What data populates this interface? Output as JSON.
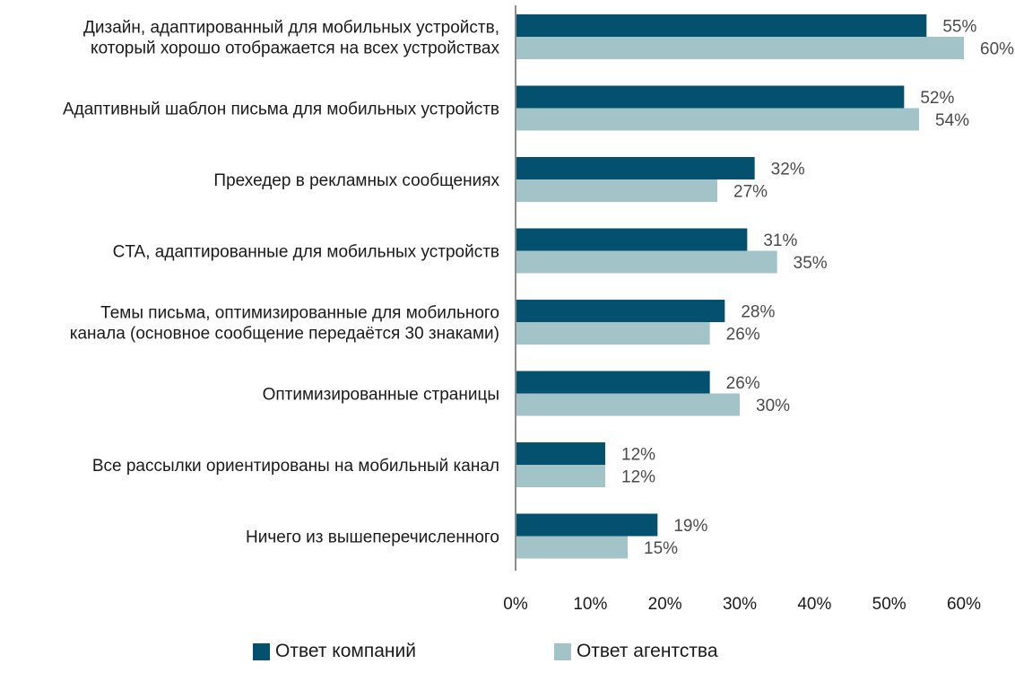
{
  "chart_data": {
    "type": "bar",
    "orientation": "horizontal",
    "categories": [
      [
        "Дизайн, адаптированный для мобильных устройств,",
        "который хорошо отображается на всех устройствах"
      ],
      [
        "Адаптивный шаблон письма для мобильных устройств"
      ],
      [
        "Прехедер в рекламных сообщениях"
      ],
      [
        "CTA, адаптированные для мобильных устройств"
      ],
      [
        "Темы письма, оптимизированные для мобильного",
        "канала (основное сообщение передаётся 30 знаками)"
      ],
      [
        "Оптимизированные страницы"
      ],
      [
        "Все рассылки ориентированы на мобильный канал"
      ],
      [
        "Ничего из вышеперечисленного"
      ]
    ],
    "series": [
      {
        "name": "Ответ компаний",
        "color": "#03506f",
        "values": [
          55,
          52,
          32,
          31,
          28,
          26,
          12,
          19
        ]
      },
      {
        "name": "Ответ агентства",
        "color": "#a2c4c9",
        "values": [
          60,
          54,
          27,
          35,
          26,
          30,
          12,
          15
        ]
      }
    ],
    "value_suffix": "%",
    "xlim": [
      0,
      60
    ],
    "xticks": [
      0,
      10,
      20,
      30,
      40,
      50,
      60
    ],
    "xtick_labels": [
      "0%",
      "10%",
      "20%",
      "30%",
      "40%",
      "50%",
      "60%"
    ],
    "grid": false,
    "legend_position": "bottom"
  }
}
